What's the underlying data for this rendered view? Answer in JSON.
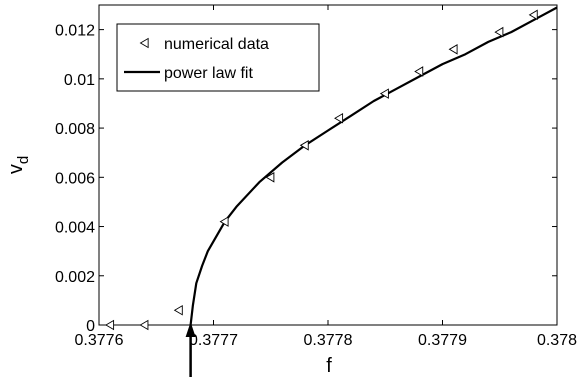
{
  "chart_data": {
    "type": "line",
    "title": "",
    "xlabel": "f",
    "ylabel": "v",
    "ylabel_subscript": "d",
    "xlim": [
      0.3776,
      0.378
    ],
    "ylim": [
      0,
      0.013
    ],
    "x_ticks": [
      0.3776,
      0.3777,
      0.3778,
      0.3779,
      0.378
    ],
    "x_tick_labels": [
      "0.3776",
      "0.3777",
      "0.3778",
      "0.3779",
      "0.378"
    ],
    "y_ticks": [
      0,
      0.002,
      0.004,
      0.006,
      0.008,
      0.01,
      0.012
    ],
    "y_tick_labels": [
      "0",
      "0.002",
      "0.004",
      "0.006",
      "0.008",
      "0.01",
      "0.012"
    ],
    "grid": false,
    "legend_position": "top-left",
    "series": [
      {
        "name": "numerical data",
        "type": "scatter",
        "marker": "triangle-left",
        "x": [
          0.37761,
          0.37764,
          0.37767,
          0.37771,
          0.37775,
          0.37778,
          0.37781,
          0.37785,
          0.37788,
          0.37791,
          0.37795,
          0.37798
        ],
        "y": [
          0,
          0,
          0.0006,
          0.0042,
          0.006,
          0.0073,
          0.0084,
          0.0094,
          0.0103,
          0.0112,
          0.0119,
          0.0126
        ]
      },
      {
        "name": "power law fit",
        "type": "line",
        "x": [
          0.37768,
          0.377682,
          0.377685,
          0.37769,
          0.377695,
          0.3777,
          0.37771,
          0.37772,
          0.37774,
          0.37776,
          0.37778,
          0.3778,
          0.37782,
          0.37784,
          0.37786,
          0.37788,
          0.3779,
          0.37792,
          0.37794,
          0.37796,
          0.37798,
          0.378
        ],
        "y": [
          0,
          0.0008,
          0.0017,
          0.0024,
          0.003,
          0.0034,
          0.0042,
          0.0048,
          0.0058,
          0.0066,
          0.0073,
          0.0079,
          0.0085,
          0.0091,
          0.0096,
          0.0101,
          0.0106,
          0.011,
          0.0115,
          0.0119,
          0.0124,
          0.0129
        ]
      }
    ],
    "annotation": {
      "type": "arrow",
      "points_to_x": 0.37768
    }
  }
}
